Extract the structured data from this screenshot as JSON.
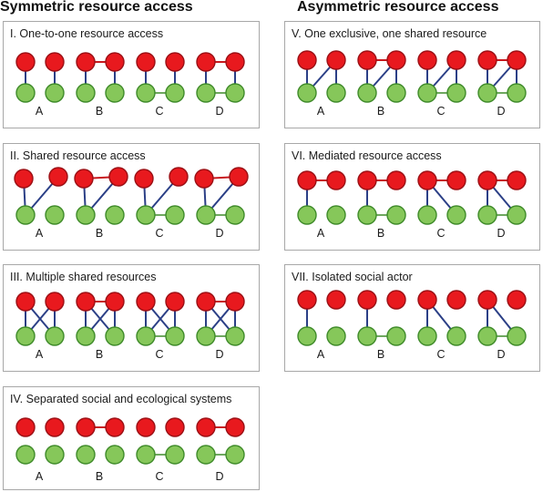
{
  "headings": {
    "symmetric": "Symmetric resource access",
    "asymmetric": "Asymmetric resource access"
  },
  "legend_colors": {
    "social_node_fill": "#e8191e",
    "social_node_stroke": "#9b1015",
    "ecological_node_fill": "#86c75a",
    "ecological_node_stroke": "#3f8b2a",
    "social_tie": "#c8191e",
    "ecological_tie": "#3f8b2a",
    "social_ecological_tie": "#2b3f86"
  },
  "panels": [
    {
      "id": "I",
      "title": "I. One-to-one resource access",
      "motifs": [
        {
          "label": "A",
          "social": false,
          "eco": false,
          "cross": [
            [
              0,
              0
            ],
            [
              1,
              1
            ]
          ]
        },
        {
          "label": "B",
          "social": true,
          "eco": false,
          "cross": [
            [
              0,
              0
            ],
            [
              1,
              1
            ]
          ]
        },
        {
          "label": "C",
          "social": false,
          "eco": true,
          "cross": [
            [
              0,
              0
            ],
            [
              1,
              1
            ]
          ]
        },
        {
          "label": "D",
          "social": true,
          "eco": true,
          "cross": [
            [
              0,
              0
            ],
            [
              1,
              1
            ]
          ]
        }
      ]
    },
    {
      "id": "II",
      "title": "II. Shared resource access",
      "motifs": [
        {
          "label": "A",
          "social": false,
          "eco": false,
          "cross": [
            [
              0,
              0
            ],
            [
              1,
              0
            ]
          ]
        },
        {
          "label": "B",
          "social": true,
          "eco": false,
          "cross": [
            [
              0,
              0
            ],
            [
              1,
              0
            ]
          ]
        },
        {
          "label": "C",
          "social": false,
          "eco": true,
          "cross": [
            [
              0,
              0
            ],
            [
              1,
              0
            ]
          ]
        },
        {
          "label": "D",
          "social": true,
          "eco": true,
          "cross": [
            [
              0,
              0
            ],
            [
              1,
              0
            ]
          ]
        }
      ]
    },
    {
      "id": "III",
      "title": "III. Multiple shared resources",
      "motifs": [
        {
          "label": "A",
          "social": false,
          "eco": false,
          "cross": [
            [
              0,
              0
            ],
            [
              1,
              1
            ],
            [
              0,
              1
            ],
            [
              1,
              0
            ]
          ]
        },
        {
          "label": "B",
          "social": true,
          "eco": false,
          "cross": [
            [
              0,
              0
            ],
            [
              1,
              1
            ],
            [
              0,
              1
            ],
            [
              1,
              0
            ]
          ]
        },
        {
          "label": "C",
          "social": false,
          "eco": true,
          "cross": [
            [
              0,
              0
            ],
            [
              1,
              1
            ],
            [
              0,
              1
            ],
            [
              1,
              0
            ]
          ]
        },
        {
          "label": "D",
          "social": true,
          "eco": true,
          "cross": [
            [
              0,
              0
            ],
            [
              1,
              1
            ],
            [
              0,
              1
            ],
            [
              1,
              0
            ]
          ]
        }
      ]
    },
    {
      "id": "IV",
      "title": "IV. Separated social and ecological systems",
      "motifs": [
        {
          "label": "A",
          "social": false,
          "eco": false,
          "cross": []
        },
        {
          "label": "B",
          "social": true,
          "eco": false,
          "cross": []
        },
        {
          "label": "C",
          "social": false,
          "eco": true,
          "cross": []
        },
        {
          "label": "D",
          "social": true,
          "eco": true,
          "cross": []
        }
      ]
    },
    {
      "id": "V",
      "title": "V. One exclusive, one shared resource",
      "motifs": [
        {
          "label": "A",
          "social": false,
          "eco": false,
          "cross": [
            [
              0,
              0
            ],
            [
              1,
              0
            ],
            [
              1,
              1
            ]
          ]
        },
        {
          "label": "B",
          "social": true,
          "eco": false,
          "cross": [
            [
              0,
              0
            ],
            [
              1,
              0
            ],
            [
              1,
              1
            ]
          ]
        },
        {
          "label": "C",
          "social": false,
          "eco": true,
          "cross": [
            [
              0,
              0
            ],
            [
              1,
              0
            ],
            [
              1,
              1
            ]
          ]
        },
        {
          "label": "D",
          "social": true,
          "eco": true,
          "cross": [
            [
              0,
              0
            ],
            [
              1,
              0
            ],
            [
              1,
              1
            ]
          ]
        }
      ]
    },
    {
      "id": "VI",
      "title": "VI. Mediated resource access",
      "motifs": [
        {
          "label": "A",
          "social": true,
          "eco": false,
          "cross": [
            [
              0,
              0
            ]
          ]
        },
        {
          "label": "B",
          "social": true,
          "eco": true,
          "cross": [
            [
              0,
              0
            ]
          ]
        },
        {
          "label": "C",
          "social": true,
          "eco": false,
          "cross": [
            [
              0,
              0
            ],
            [
              0,
              1
            ]
          ]
        },
        {
          "label": "D",
          "social": true,
          "eco": true,
          "cross": [
            [
              0,
              0
            ],
            [
              0,
              1
            ]
          ]
        }
      ]
    },
    {
      "id": "VII",
      "title": "VII. Isolated social actor",
      "motifs": [
        {
          "label": "A",
          "social": false,
          "eco": false,
          "cross": [
            [
              0,
              0
            ]
          ]
        },
        {
          "label": "B",
          "social": false,
          "eco": true,
          "cross": [
            [
              0,
              0
            ]
          ]
        },
        {
          "label": "C",
          "social": false,
          "eco": false,
          "cross": [
            [
              0,
              0
            ],
            [
              0,
              1
            ]
          ]
        },
        {
          "label": "D",
          "social": false,
          "eco": true,
          "cross": [
            [
              0,
              0
            ],
            [
              0,
              1
            ]
          ]
        }
      ]
    }
  ]
}
